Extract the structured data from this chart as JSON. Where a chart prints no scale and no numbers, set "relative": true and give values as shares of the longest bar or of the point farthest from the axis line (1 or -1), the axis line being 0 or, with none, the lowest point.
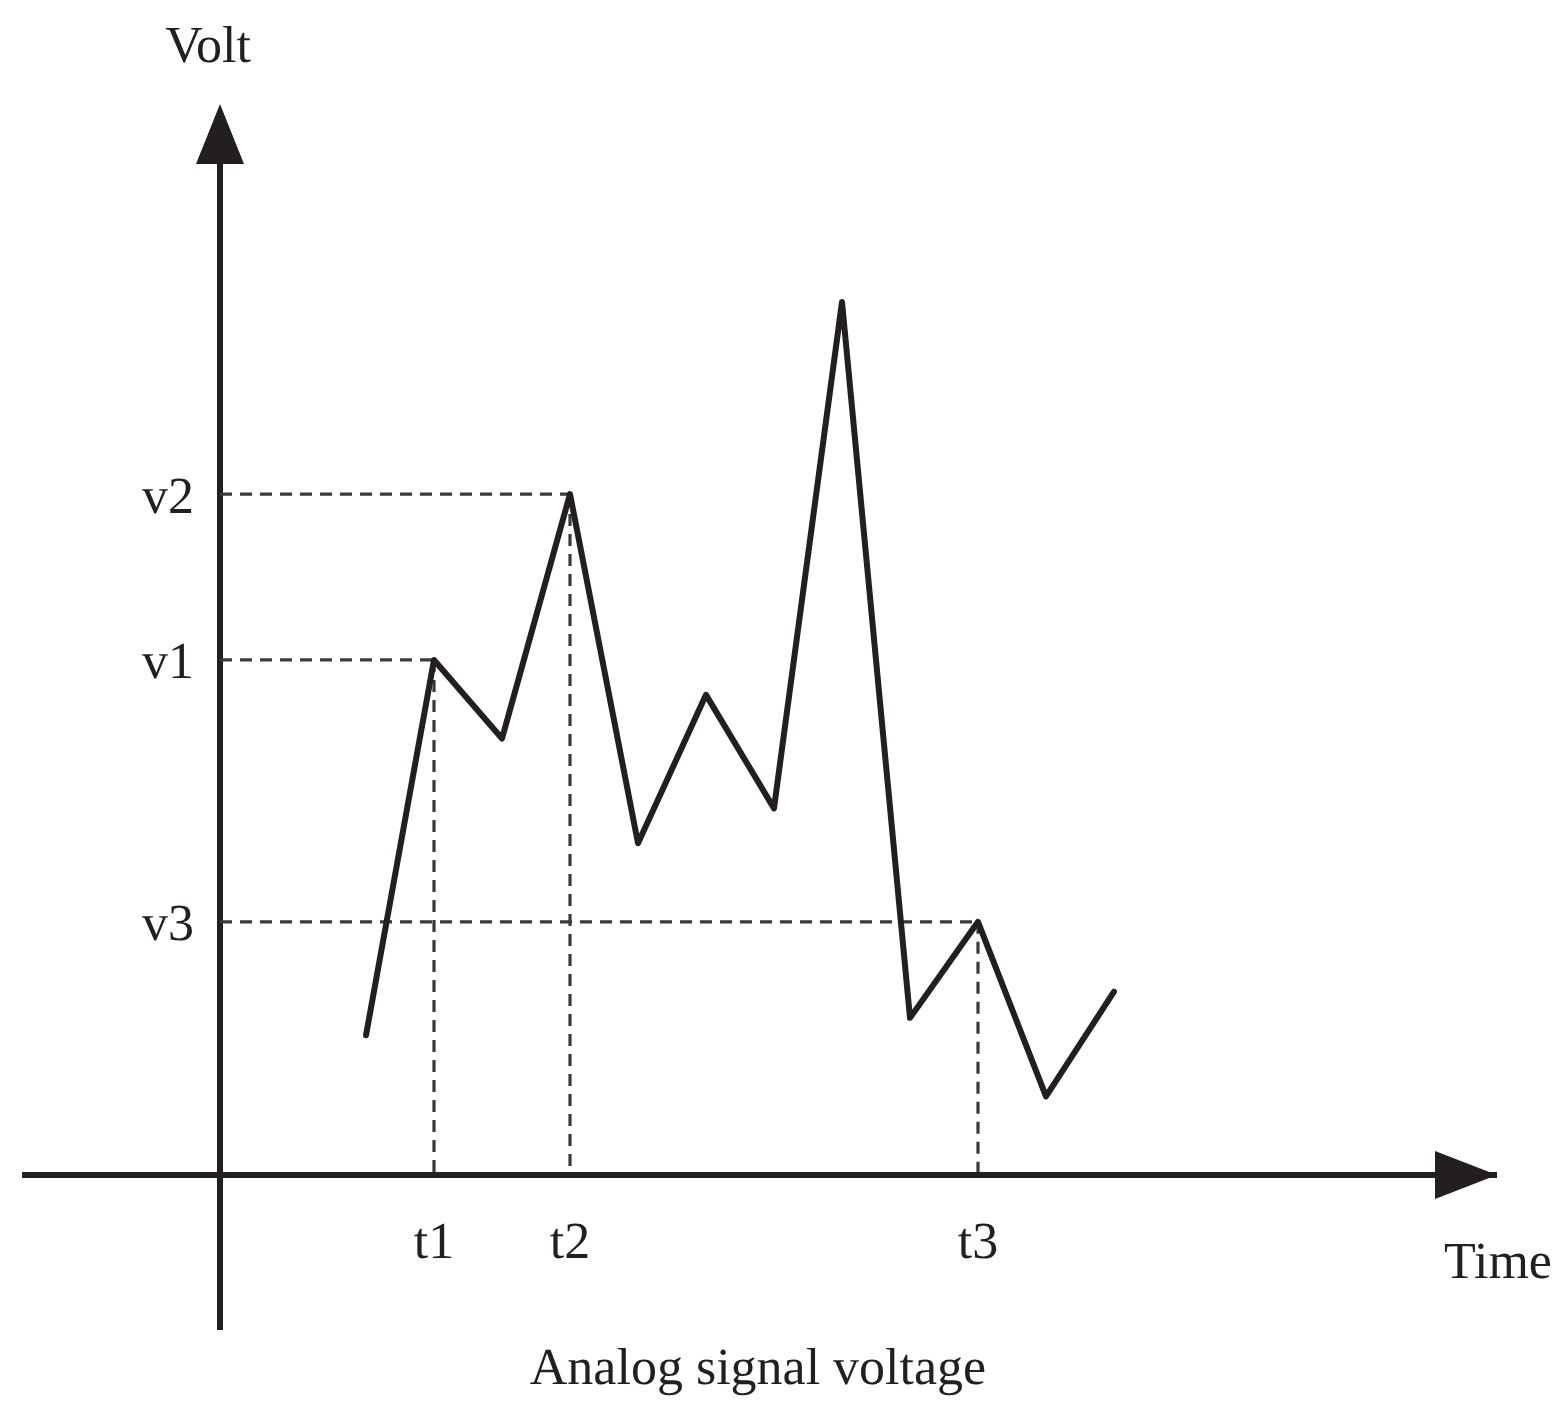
{
  "chart_data": {
    "type": "line",
    "title": "Analog signal voltage",
    "ylabel": "Volt",
    "relative": true,
    "annotations": [
      "Time"
    ],
    "categories": [
      null,
      "t1",
      null,
      "t2",
      null,
      null,
      null,
      null,
      null,
      "t3",
      null,
      null
    ],
    "series": [
      {
        "color": "#231f20",
        "values": [
          0.16,
          0.59,
          0.5,
          0.78,
          0.38,
          0.55,
          0.42,
          1,
          0.18,
          0.29,
          0.09,
          0.21
        ]
      }
    ],
    "ref_lines": [
      {
        "axis": "x",
        "value": "t1",
        "color": "#3a3a3a",
        "line_style": "dashed"
      },
      {
        "axis": "x",
        "value": "t2",
        "color": "#3a3a3a",
        "line_style": "dashed"
      },
      {
        "axis": "x",
        "value": "t3",
        "color": "#3a3a3a",
        "line_style": "dashed"
      },
      {
        "axis": "y",
        "value": 0.78,
        "label": "v2",
        "color": "#3a3a3a",
        "line_style": "dashed"
      },
      {
        "axis": "y",
        "value": 0.59,
        "label": "v1",
        "color": "#3a3a3a",
        "line_style": "dashed"
      },
      {
        "axis": "y",
        "value": 0.29,
        "label": "v3",
        "color": "#3a3a3a",
        "line_style": "dashed"
      }
    ]
  }
}
